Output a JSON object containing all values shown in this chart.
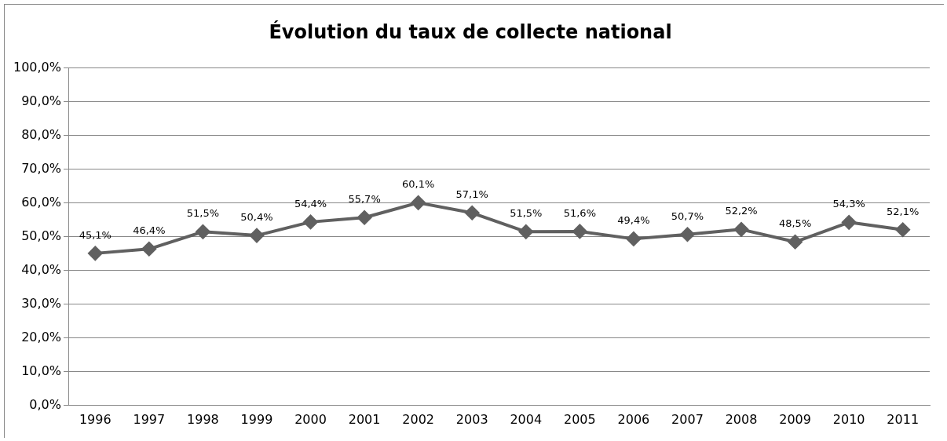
{
  "chart_data": {
    "type": "line",
    "title": "Évolution du taux de collecte national",
    "categories": [
      "1996",
      "1997",
      "1998",
      "1999",
      "2000",
      "2001",
      "2002",
      "2003",
      "2004",
      "2005",
      "2006",
      "2007",
      "2008",
      "2009",
      "2010",
      "2011"
    ],
    "series": [
      {
        "color": "#606060",
        "values": [
          45.1,
          46.4,
          51.5,
          50.4,
          54.4,
          55.7,
          60.1,
          57.1,
          51.5,
          51.6,
          49.4,
          50.7,
          52.2,
          48.5,
          54.3,
          52.1
        ],
        "value_labels": [
          "45,1%",
          "46,4%",
          "51,5%",
          "50,4%",
          "54,4%",
          "55,7%",
          "60,1%",
          "57,1%",
          "51,5%",
          "51,6%",
          "49,4%",
          "50,7%",
          "52,2%",
          "48,5%",
          "54,3%",
          "52,1%"
        ]
      }
    ],
    "ylim": [
      0,
      100
    ],
    "yticks": [
      {
        "value": 0,
        "label": "0,0%"
      },
      {
        "value": 10,
        "label": "10,0%"
      },
      {
        "value": 20,
        "label": "20,0%"
      },
      {
        "value": 30,
        "label": "30,0%"
      },
      {
        "value": 40,
        "label": "40,0%"
      },
      {
        "value": 50,
        "label": "50,0%"
      },
      {
        "value": 60,
        "label": "60,0%"
      },
      {
        "value": 70,
        "label": "70,0%"
      },
      {
        "value": 80,
        "label": "80,0%"
      },
      {
        "value": 90,
        "label": "90,0%"
      },
      {
        "value": 100,
        "label": "100,0%"
      }
    ],
    "grid": "y",
    "legend": false,
    "marker": "diamond",
    "line_style": "solid"
  }
}
